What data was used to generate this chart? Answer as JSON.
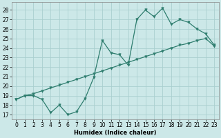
{
  "xlabel": "Humidex (Indice chaleur)",
  "bg_color": "#cce8e8",
  "grid_color": "#aacfcf",
  "line_color": "#2e7d6e",
  "xlim": [
    -0.5,
    23.5
  ],
  "ylim": [
    16.5,
    28.8
  ],
  "yticks": [
    17,
    18,
    19,
    20,
    21,
    22,
    23,
    24,
    25,
    26,
    27,
    28
  ],
  "xticks": [
    0,
    1,
    2,
    3,
    4,
    5,
    6,
    7,
    8,
    9,
    10,
    11,
    12,
    13,
    14,
    15,
    16,
    17,
    18,
    19,
    20,
    21,
    22,
    23
  ],
  "line1_y": [
    18.6,
    19.0,
    19.0,
    18.6,
    17.2,
    18.0,
    17.0,
    17.3,
    18.7,
    20.9,
    24.8,
    23.5,
    23.3,
    22.2,
    27.0,
    28.0,
    27.3,
    28.2,
    26.5,
    27.0,
    26.7,
    26.0,
    25.5,
    24.3
  ],
  "line2_y": [
    18.6,
    19.0,
    19.2,
    19.5,
    19.8,
    20.1,
    20.4,
    20.7,
    21.0,
    21.3,
    21.6,
    21.9,
    22.2,
    22.5,
    22.8,
    23.1,
    23.4,
    23.7,
    24.0,
    24.3,
    24.5,
    24.8,
    25.0,
    24.2
  ],
  "xlabel_fontsize": 6,
  "tick_fontsize": 5.5,
  "linewidth": 0.9,
  "markersize": 2.5
}
